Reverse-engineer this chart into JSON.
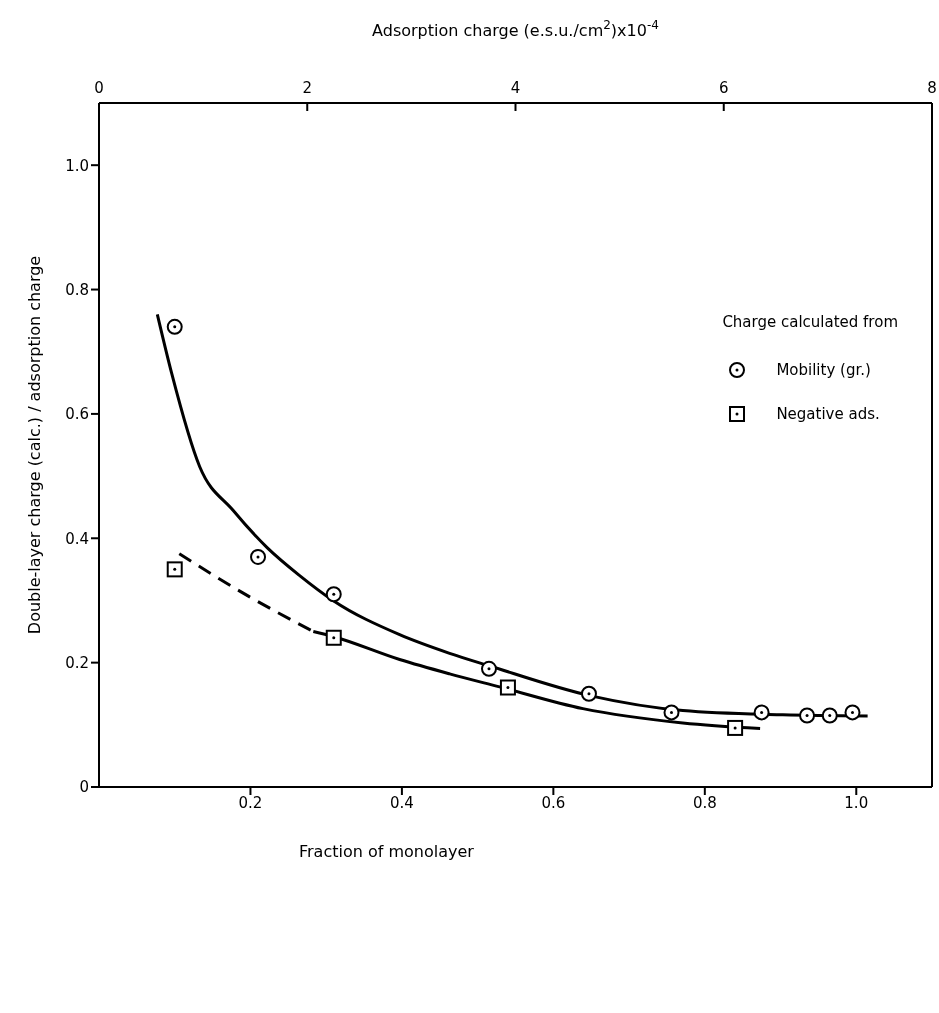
{
  "chart_data": {
    "type": "scatter",
    "xlabel": "Fraction  of  monolayer",
    "ylabel": "Double-layer  charge (calc.) / adsorption  charge",
    "x2label": "Adsorption  charge  (e.s.u./cm$^{2}$)x10$^{-4}$",
    "legend_title": "Charge  calculated  from",
    "xlim": [
      0,
      1.1
    ],
    "xticks": [
      0.2,
      0.4,
      0.6,
      0.8,
      {
        "value": 1,
        "label": "1.0"
      }
    ],
    "x2lim": [
      0,
      8
    ],
    "x2ticks": [
      0,
      2,
      4,
      6,
      8
    ],
    "ylim": [
      0,
      1.1
    ],
    "yticks": [
      0,
      0.2,
      0.4,
      0.6,
      0.8,
      {
        "value": 1,
        "label": "1.0"
      }
    ],
    "grid": false,
    "legend": "right",
    "series": [
      {
        "name": "Mobility (gr.)",
        "color": "#000000",
        "marker": "circle",
        "x": [
          0.1,
          0.21,
          0.31,
          0.515,
          0.647,
          0.756,
          0.875,
          0.935,
          0.965,
          0.995
        ],
        "values": [
          0.74,
          0.37,
          0.31,
          0.19,
          0.15,
          0.12,
          0.12,
          0.115,
          0.115,
          0.12
        ]
      },
      {
        "name": "Negative ads.",
        "color": "#000000",
        "marker": "square",
        "x": [
          0.1,
          0.31,
          0.54,
          0.84
        ],
        "values": [
          0.35,
          0.24,
          0.16,
          0.095
        ]
      },
      {
        "type": "line",
        "color": "#000000",
        "line_style": "solid",
        "x": [
          0.077,
          0.096,
          0.133,
          0.177,
          0.222,
          0.265,
          0.309,
          0.397,
          0.463,
          0.515,
          0.648,
          0.771,
          0.903,
          1.015
        ],
        "values": [
          0.76,
          0.665,
          0.515,
          0.445,
          0.385,
          0.34,
          0.3,
          0.245,
          0.215,
          0.195,
          0.147,
          0.123,
          0.116,
          0.114
        ]
      },
      {
        "type": "line",
        "color": "#000000",
        "line_style": "dashed",
        "x": [
          0.106,
          0.2,
          0.283
        ],
        "values": [
          0.375,
          0.305,
          0.25
        ]
      },
      {
        "type": "line",
        "color": "#000000",
        "line_style": "solid",
        "x": [
          0.283,
          0.309,
          0.397,
          0.463,
          0.529,
          0.639,
          0.771,
          0.873
        ],
        "values": [
          0.25,
          0.242,
          0.205,
          0.182,
          0.161,
          0.126,
          0.103,
          0.094
        ]
      }
    ]
  }
}
